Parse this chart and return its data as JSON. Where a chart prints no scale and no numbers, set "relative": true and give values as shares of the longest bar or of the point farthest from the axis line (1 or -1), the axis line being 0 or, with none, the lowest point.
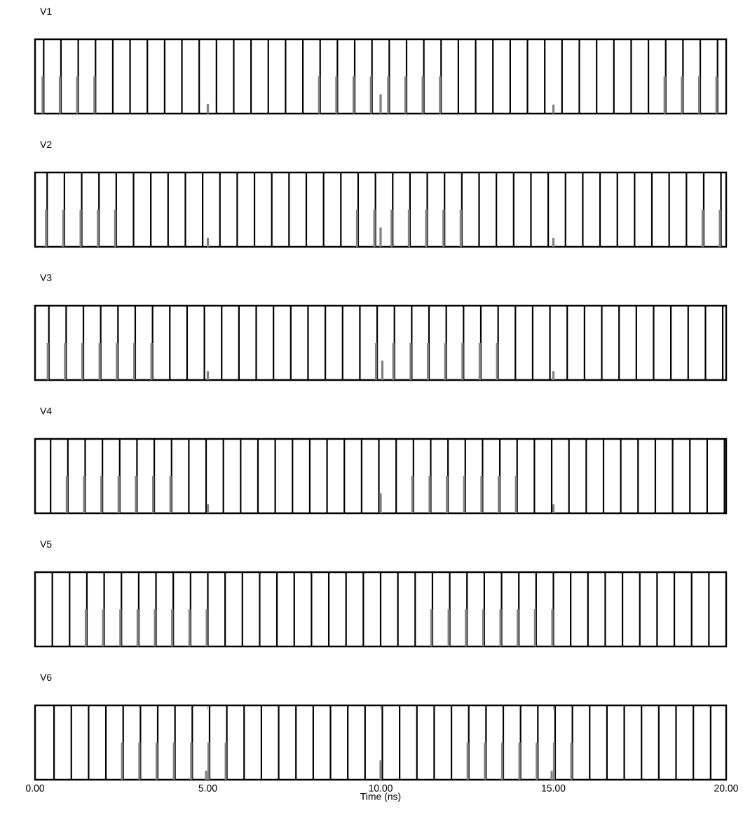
{
  "chart_data": [
    {
      "type": "bar",
      "title": "V1",
      "relative": true,
      "xlim": [
        0,
        20
      ],
      "tick_labels": false,
      "series": [
        {
          "color": "#000000",
          "x": [
            0.25,
            0.75,
            1.25,
            1.75,
            2.25,
            2.75,
            3.25,
            3.75,
            4.25,
            4.75,
            5.25,
            5.75,
            6.25,
            6.75,
            7.25,
            7.75,
            8.25,
            8.75,
            9.25,
            9.75,
            10.25,
            10.75,
            11.25,
            11.75,
            12.25,
            12.75,
            13.25,
            13.75,
            14.25,
            14.75,
            15.25,
            15.75,
            16.25,
            16.75,
            17.25,
            17.75,
            18.25,
            18.75,
            19.25,
            19.75
          ],
          "values": [
            1,
            1,
            1,
            1,
            1,
            1,
            1,
            1,
            1,
            1,
            1,
            1,
            1,
            1,
            1,
            1,
            1,
            1,
            1,
            1,
            1,
            1,
            1,
            1,
            1,
            1,
            1,
            1,
            1,
            1,
            1,
            1,
            1,
            1,
            1,
            1,
            1,
            1,
            1,
            1
          ]
        },
        {
          "color": "#808080",
          "x": [
            0.22,
            0.72,
            1.22,
            1.72,
            5.0,
            8.22,
            8.72,
            9.22,
            9.72,
            10.0,
            10.22,
            10.72,
            11.22,
            11.72,
            15.0,
            18.22,
            18.72,
            19.22,
            19.72
          ],
          "values": [
            0.5,
            0.5,
            0.5,
            0.5,
            0.13,
            0.5,
            0.5,
            0.5,
            0.5,
            0.26,
            0.5,
            0.5,
            0.5,
            0.5,
            0.12,
            0.5,
            0.5,
            0.5,
            0.5
          ]
        }
      ]
    },
    {
      "type": "bar",
      "title": "V2",
      "relative": true,
      "xlim": [
        0,
        20
      ],
      "tick_labels": false,
      "series": [
        {
          "color": "#000000",
          "x": [
            0.35,
            0.85,
            1.35,
            1.85,
            2.35,
            2.85,
            3.35,
            3.85,
            4.35,
            4.85,
            5.35,
            5.85,
            6.35,
            6.85,
            7.35,
            7.85,
            8.35,
            8.85,
            9.35,
            9.85,
            10.35,
            10.85,
            11.35,
            11.85,
            12.35,
            12.85,
            13.35,
            13.85,
            14.35,
            14.85,
            15.35,
            15.85,
            16.35,
            16.85,
            17.35,
            17.85,
            18.35,
            18.85,
            19.35,
            19.85
          ],
          "values": [
            1,
            1,
            1,
            1,
            1,
            1,
            1,
            1,
            1,
            1,
            1,
            1,
            1,
            1,
            1,
            1,
            1,
            1,
            1,
            1,
            1,
            1,
            1,
            1,
            1,
            1,
            1,
            1,
            1,
            1,
            1,
            1,
            1,
            1,
            1,
            1,
            1,
            1,
            1,
            1
          ]
        },
        {
          "color": "#808080",
          "x": [
            0.32,
            0.82,
            1.32,
            1.82,
            2.32,
            5.0,
            9.32,
            9.82,
            10.0,
            10.32,
            10.82,
            11.32,
            11.82,
            12.32,
            15.0,
            19.32,
            19.82
          ],
          "values": [
            0.5,
            0.5,
            0.5,
            0.5,
            0.5,
            0.12,
            0.5,
            0.5,
            0.26,
            0.5,
            0.5,
            0.5,
            0.5,
            0.5,
            0.12,
            0.5,
            0.5
          ]
        }
      ]
    },
    {
      "type": "bar",
      "title": "V3",
      "relative": true,
      "xlim": [
        0,
        20
      ],
      "tick_labels": false,
      "series": [
        {
          "color": "#000000",
          "x": [
            0.4,
            0.9,
            1.4,
            1.9,
            2.4,
            2.9,
            3.4,
            3.9,
            4.4,
            4.9,
            5.4,
            5.9,
            6.4,
            6.9,
            7.4,
            7.9,
            8.4,
            8.9,
            9.4,
            9.9,
            10.4,
            10.9,
            11.4,
            11.9,
            12.4,
            12.9,
            13.4,
            13.9,
            14.4,
            14.9,
            15.4,
            15.9,
            16.4,
            16.9,
            17.4,
            17.9,
            18.4,
            18.9,
            19.4,
            19.9
          ],
          "values": [
            1,
            1,
            1,
            1,
            1,
            1,
            1,
            1,
            1,
            1,
            1,
            1,
            1,
            1,
            1,
            1,
            1,
            1,
            1,
            1,
            1,
            1,
            1,
            1,
            1,
            1,
            1,
            1,
            1,
            1,
            1,
            1,
            1,
            1,
            1,
            1,
            1,
            1,
            1,
            1
          ]
        },
        {
          "color": "#808080",
          "x": [
            0.37,
            0.87,
            1.37,
            1.87,
            2.37,
            2.87,
            3.37,
            5.0,
            9.87,
            10.05,
            10.37,
            10.87,
            11.37,
            11.87,
            12.37,
            12.87,
            13.37,
            15.0
          ],
          "values": [
            0.5,
            0.5,
            0.5,
            0.5,
            0.5,
            0.5,
            0.5,
            0.12,
            0.5,
            0.26,
            0.5,
            0.5,
            0.5,
            0.5,
            0.5,
            0.5,
            0.5,
            0.12
          ]
        }
      ]
    },
    {
      "type": "bar",
      "title": "V4",
      "relative": true,
      "xlim": [
        0,
        20
      ],
      "tick_labels": false,
      "series": [
        {
          "color": "#000000",
          "x": [
            0.45,
            0.95,
            1.45,
            1.95,
            2.45,
            2.95,
            3.45,
            3.95,
            4.45,
            4.95,
            5.45,
            5.95,
            6.45,
            6.95,
            7.45,
            7.95,
            8.45,
            8.95,
            9.45,
            9.95,
            10.45,
            10.95,
            11.45,
            11.95,
            12.45,
            12.95,
            13.45,
            13.95,
            14.45,
            14.95,
            15.45,
            15.95,
            16.45,
            16.95,
            17.45,
            17.95,
            18.45,
            18.95,
            19.45,
            19.95
          ],
          "values": [
            1,
            1,
            1,
            1,
            1,
            1,
            1,
            1,
            1,
            1,
            1,
            1,
            1,
            1,
            1,
            1,
            1,
            1,
            1,
            1,
            1,
            1,
            1,
            1,
            1,
            1,
            1,
            1,
            1,
            1,
            1,
            1,
            1,
            1,
            1,
            1,
            1,
            1,
            1,
            1
          ]
        },
        {
          "color": "#808080",
          "x": [
            0.92,
            1.42,
            1.92,
            2.42,
            2.92,
            3.42,
            3.92,
            5.0,
            10.0,
            10.92,
            11.42,
            11.92,
            12.42,
            12.92,
            13.42,
            13.92,
            15.0
          ],
          "values": [
            0.5,
            0.5,
            0.5,
            0.5,
            0.5,
            0.5,
            0.5,
            0.12,
            0.27,
            0.5,
            0.5,
            0.5,
            0.5,
            0.5,
            0.5,
            0.5,
            0.12
          ]
        }
      ]
    },
    {
      "type": "bar",
      "title": "V5",
      "relative": true,
      "xlim": [
        0,
        20
      ],
      "tick_labels": false,
      "series": [
        {
          "color": "#000000",
          "x": [
            0.5,
            1.0,
            1.5,
            2.0,
            2.5,
            3.0,
            3.5,
            4.0,
            4.5,
            5.0,
            5.5,
            6.0,
            6.5,
            7.0,
            7.5,
            8.0,
            8.5,
            9.0,
            9.5,
            10.0,
            10.5,
            11.0,
            11.5,
            12.0,
            12.5,
            13.0,
            13.5,
            14.0,
            14.5,
            15.0,
            15.5,
            16.0,
            16.5,
            17.0,
            17.5,
            18.0,
            18.5,
            19.0,
            19.5
          ],
          "values": [
            1,
            1,
            1,
            1,
            1,
            1,
            1,
            1,
            1,
            1,
            1,
            1,
            1,
            1,
            1,
            1,
            1,
            1,
            1,
            1,
            1,
            1,
            1,
            1,
            1,
            1,
            1,
            1,
            1,
            1,
            1,
            1,
            1,
            1,
            1,
            1,
            1,
            1,
            1
          ]
        },
        {
          "color": "#808080",
          "x": [
            1.47,
            1.97,
            2.47,
            2.97,
            3.47,
            3.97,
            4.47,
            4.97,
            11.47,
            11.97,
            12.47,
            12.97,
            13.47,
            13.97,
            14.47,
            14.97
          ],
          "values": [
            0.5,
            0.5,
            0.5,
            0.5,
            0.5,
            0.5,
            0.5,
            0.5,
            0.5,
            0.5,
            0.5,
            0.5,
            0.5,
            0.5,
            0.5,
            0.5
          ]
        }
      ]
    },
    {
      "type": "bar",
      "title": "V6",
      "xlabel": "Time (ns)",
      "relative": true,
      "xlim": [
        0,
        20
      ],
      "xticks": [
        {
          "value": 0,
          "label": "0.00"
        },
        {
          "value": 5,
          "label": "5.00"
        },
        {
          "value": 10,
          "label": "10.00"
        },
        {
          "value": 15,
          "label": "15.00"
        },
        {
          "value": 20,
          "label": "20.00"
        }
      ],
      "tick_labels": "x",
      "series": [
        {
          "color": "#000000",
          "x": [
            0.55,
            1.05,
            1.55,
            2.05,
            2.55,
            3.05,
            3.55,
            4.05,
            4.55,
            5.05,
            5.55,
            6.05,
            6.55,
            7.05,
            7.55,
            8.05,
            8.55,
            9.05,
            9.55,
            10.05,
            10.55,
            11.05,
            11.55,
            12.05,
            12.55,
            13.05,
            13.55,
            14.05,
            14.55,
            15.05,
            15.55,
            16.05,
            16.55,
            17.05,
            17.55,
            18.05,
            18.55,
            19.05,
            19.55
          ],
          "values": [
            1,
            1,
            1,
            1,
            1,
            1,
            1,
            1,
            1,
            1,
            1,
            1,
            1,
            1,
            1,
            1,
            1,
            1,
            1,
            1,
            1,
            1,
            1,
            1,
            1,
            1,
            1,
            1,
            1,
            1,
            1,
            1,
            1,
            1,
            1,
            1,
            1,
            1,
            1
          ]
        },
        {
          "color": "#808080",
          "x": [
            2.52,
            3.02,
            3.52,
            4.02,
            4.52,
            4.95,
            5.02,
            5.52,
            10.0,
            12.52,
            13.02,
            13.52,
            14.02,
            14.52,
            14.95,
            15.02,
            15.52
          ],
          "values": [
            0.5,
            0.5,
            0.5,
            0.5,
            0.5,
            0.12,
            0.5,
            0.5,
            0.26,
            0.5,
            0.5,
            0.5,
            0.5,
            0.5,
            0.12,
            0.5,
            0.5
          ]
        }
      ]
    }
  ]
}
